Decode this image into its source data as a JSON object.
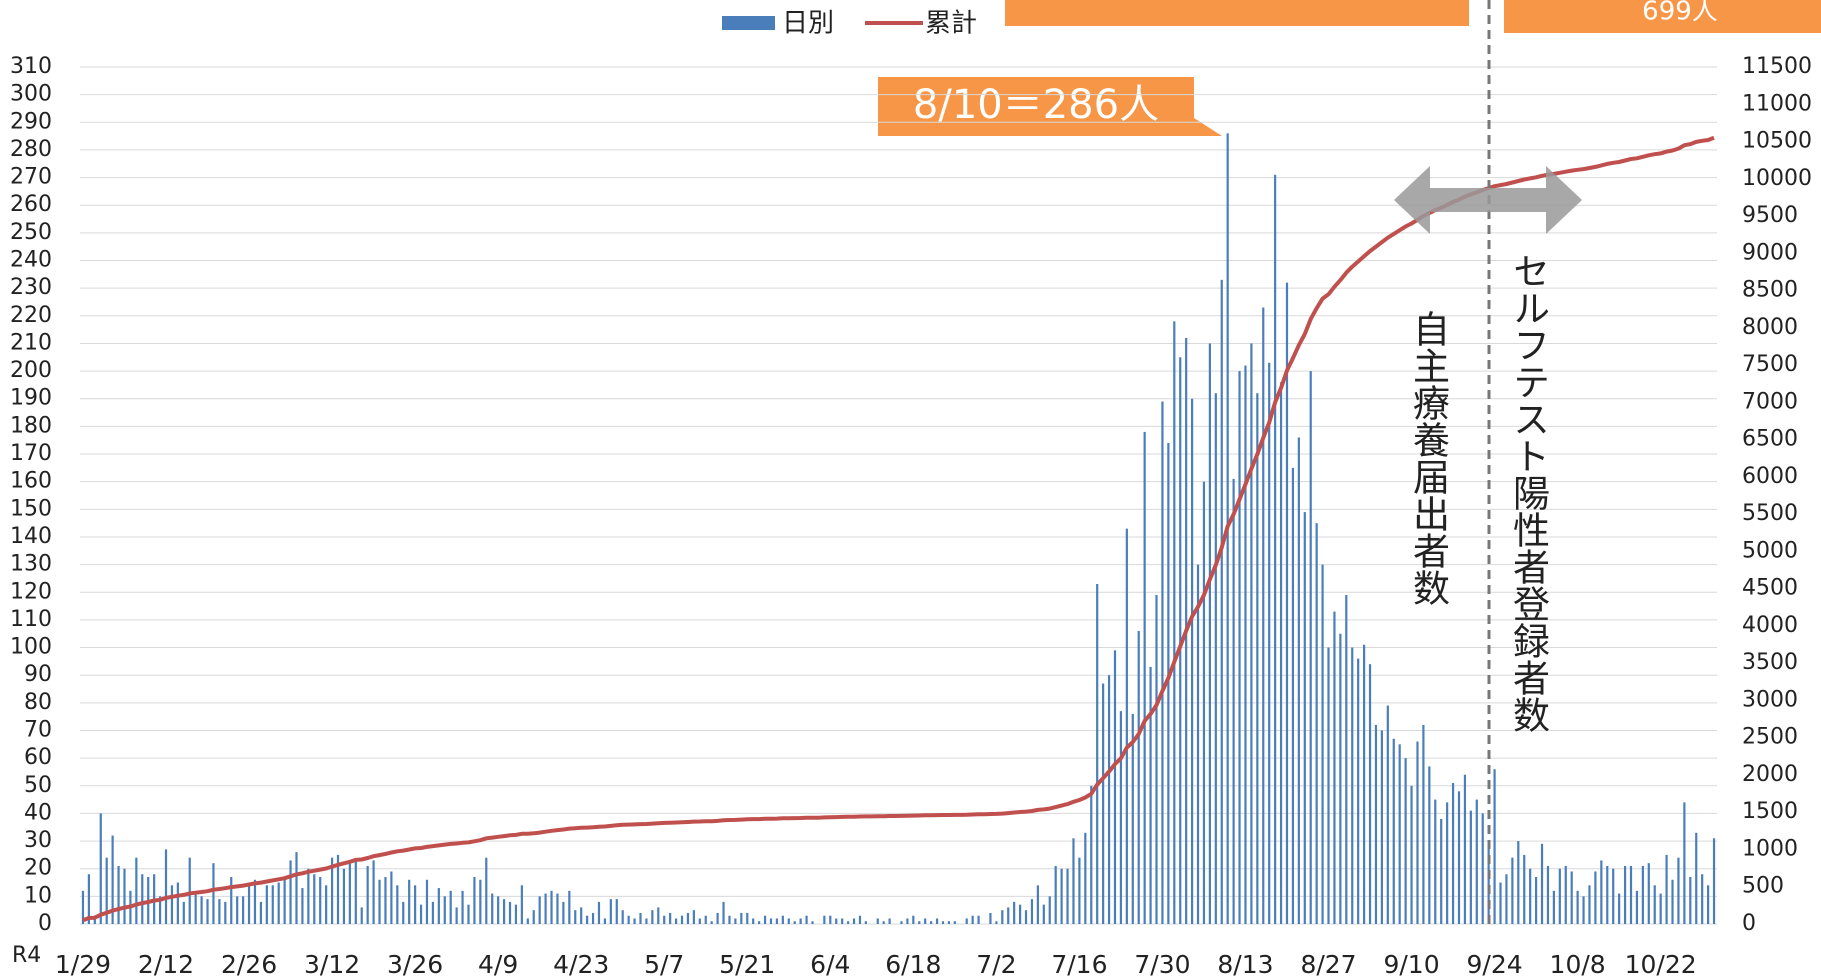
{
  "chart_data": {
    "type": "bar",
    "legend": "top",
    "grid": true,
    "ylim": [
      0,
      310
    ],
    "yticks": [
      0,
      10,
      20,
      30,
      40,
      50,
      60,
      70,
      80,
      90,
      100,
      110,
      120,
      130,
      140,
      150,
      160,
      170,
      180,
      190,
      200,
      210,
      220,
      230,
      240,
      250,
      260,
      270,
      280,
      290,
      300,
      310
    ],
    "y2lim": [
      0,
      11500
    ],
    "y2ticks": [
      0,
      500,
      1000,
      1500,
      2000,
      2500,
      3000,
      3500,
      4000,
      4500,
      5000,
      5500,
      6000,
      6500,
      7000,
      7500,
      8000,
      8500,
      9000,
      9500,
      10000,
      10500,
      11000,
      11500
    ],
    "annotations": [
      "8/10＝286人",
      "699人",
      "自主療養届出者数",
      "セルフテスト陽性者登録者数",
      "R4"
    ],
    "categories": [
      "1/29",
      null,
      null,
      null,
      null,
      null,
      null,
      null,
      null,
      null,
      null,
      null,
      null,
      null,
      "2/12",
      null,
      null,
      null,
      null,
      null,
      null,
      null,
      null,
      null,
      null,
      null,
      null,
      null,
      "2/26",
      null,
      null,
      null,
      null,
      null,
      null,
      null,
      null,
      null,
      null,
      null,
      null,
      null,
      "3/12",
      null,
      null,
      null,
      null,
      null,
      null,
      null,
      null,
      null,
      null,
      null,
      null,
      null,
      "3/26",
      null,
      null,
      null,
      null,
      null,
      null,
      null,
      null,
      null,
      null,
      null,
      null,
      null,
      "4/9",
      null,
      null,
      null,
      null,
      null,
      null,
      null,
      null,
      null,
      null,
      null,
      null,
      null,
      "4/23",
      null,
      null,
      null,
      null,
      null,
      null,
      null,
      null,
      null,
      null,
      null,
      null,
      null,
      "5/7",
      null,
      null,
      null,
      null,
      null,
      null,
      null,
      null,
      null,
      null,
      null,
      null,
      null,
      "5/21",
      null,
      null,
      null,
      null,
      null,
      null,
      null,
      null,
      null,
      null,
      null,
      null,
      null,
      "6/4",
      null,
      null,
      null,
      null,
      null,
      null,
      null,
      null,
      null,
      null,
      null,
      null,
      null,
      "6/18",
      null,
      null,
      null,
      null,
      null,
      null,
      null,
      null,
      null,
      null,
      null,
      null,
      null,
      "7/2",
      null,
      null,
      null,
      null,
      null,
      null,
      null,
      null,
      null,
      null,
      null,
      null,
      null,
      "7/16",
      null,
      null,
      null,
      null,
      null,
      null,
      null,
      null,
      null,
      null,
      null,
      null,
      null,
      "7/30",
      null,
      null,
      null,
      null,
      null,
      null,
      null,
      null,
      null,
      null,
      null,
      null,
      null,
      "8/13",
      null,
      null,
      null,
      null,
      null,
      null,
      null,
      null,
      null,
      null,
      null,
      null,
      null,
      "8/27",
      null,
      null,
      null,
      null,
      null,
      null,
      null,
      null,
      null,
      null,
      null,
      null,
      null,
      "9/10",
      null,
      null,
      null,
      null,
      null,
      null,
      null,
      null,
      null,
      null,
      null,
      null,
      null,
      "9/24",
      null,
      null,
      null,
      null,
      null,
      null,
      null,
      null,
      null,
      null,
      null,
      null,
      null,
      "10/8",
      null,
      null,
      null,
      null,
      null,
      null,
      null,
      null,
      null,
      null,
      null,
      null,
      null,
      "10/22",
      null,
      null,
      null,
      null,
      null,
      null,
      null,
      null,
      null
    ],
    "series": [
      {
        "name": "日別",
        "color": "#4a7ebb",
        "values": [
          12,
          18,
          3,
          40,
          24,
          32,
          21,
          20,
          12,
          24,
          18,
          17,
          18,
          10,
          27,
          14,
          15,
          8,
          24,
          11,
          10,
          9,
          22,
          9,
          8,
          17,
          10,
          10,
          15,
          16,
          8,
          14,
          14,
          15,
          17,
          23,
          26,
          13,
          20,
          18,
          17,
          14,
          24,
          25,
          20,
          22,
          23,
          6,
          21,
          23,
          16,
          17,
          19,
          14,
          8,
          16,
          14,
          7,
          16,
          8,
          13,
          10,
          12,
          6,
          12,
          7,
          17,
          16,
          24,
          11,
          10,
          9,
          8,
          7,
          14,
          2,
          5,
          10,
          11,
          12,
          11,
          8,
          12,
          5,
          6,
          3,
          4,
          8,
          2,
          9,
          9,
          5,
          3,
          2,
          4,
          2,
          5,
          6,
          3,
          4,
          2,
          3,
          4,
          5,
          2,
          3,
          1,
          4,
          8,
          3,
          2,
          4,
          4,
          2,
          1,
          3,
          2,
          2,
          3,
          2,
          1,
          2,
          3,
          1,
          0,
          3,
          3,
          2,
          2,
          1,
          2,
          3,
          1,
          0,
          2,
          1,
          2,
          0,
          1,
          2,
          3,
          1,
          2,
          1,
          2,
          1,
          1,
          1,
          0,
          2,
          3,
          3,
          0,
          4,
          1,
          5,
          6,
          8,
          7,
          5,
          9,
          14,
          7,
          10,
          21,
          20,
          20,
          31,
          24,
          33,
          50,
          123,
          87,
          90,
          99,
          77,
          143,
          76,
          106,
          178,
          93,
          119,
          189,
          174,
          218,
          205,
          212,
          190,
          130,
          160,
          210,
          192,
          233,
          286,
          161,
          200,
          202,
          210,
          192,
          223,
          203,
          271,
          196,
          232,
          165,
          176,
          149,
          200,
          145,
          130,
          100,
          113,
          105,
          119,
          100,
          96,
          101,
          94,
          72,
          70,
          79,
          67,
          65,
          60,
          50,
          66,
          72,
          57,
          45,
          38,
          44,
          51,
          48,
          54,
          41,
          45,
          40,
          30,
          56,
          15,
          18,
          24,
          30,
          25,
          20,
          17,
          29,
          21,
          12,
          20,
          21,
          19,
          12,
          10,
          14,
          19,
          23,
          21,
          20,
          11,
          21,
          21,
          12,
          21,
          22,
          14,
          11,
          25,
          16,
          24,
          44,
          17,
          33,
          18,
          14,
          31
        ]
      },
      {
        "name": "累計",
        "color": "#c0504d",
        "axis": "y2",
        "type": "line",
        "values": [
          50,
          80,
          85,
          125,
          150,
          180,
          200,
          220,
          235,
          260,
          280,
          295,
          315,
          325,
          350,
          365,
          380,
          390,
          410,
          420,
          430,
          440,
          460,
          470,
          480,
          495,
          505,
          515,
          530,
          545,
          555,
          570,
          585,
          600,
          615,
          640,
          665,
          680,
          700,
          715,
          730,
          745,
          770,
          795,
          815,
          835,
          860,
          865,
          885,
          910,
          925,
          940,
          960,
          975,
          985,
          1000,
          1015,
          1020,
          1035,
          1045,
          1055,
          1065,
          1075,
          1080,
          1090,
          1095,
          1110,
          1125,
          1150,
          1160,
          1170,
          1180,
          1190,
          1195,
          1210,
          1212,
          1217,
          1227,
          1238,
          1250,
          1260,
          1268,
          1280,
          1285,
          1291,
          1294,
          1298,
          1306,
          1308,
          1317,
          1326,
          1331,
          1334,
          1336,
          1340,
          1342,
          1347,
          1353,
          1356,
          1360,
          1362,
          1365,
          1369,
          1374,
          1376,
          1379,
          1380,
          1384,
          1392,
          1395,
          1397,
          1401,
          1405,
          1407,
          1408,
          1411,
          1413,
          1415,
          1418,
          1420,
          1421,
          1423,
          1426,
          1427,
          1427,
          1430,
          1433,
          1435,
          1437,
          1438,
          1440,
          1443,
          1444,
          1444,
          1446,
          1447,
          1449,
          1449,
          1450,
          1452,
          1455,
          1456,
          1458,
          1459,
          1461,
          1462,
          1463,
          1464,
          1464,
          1466,
          1469,
          1472,
          1472,
          1476,
          1477,
          1482,
          1488,
          1496,
          1503,
          1508,
          1517,
          1531,
          1538,
          1548,
          1569,
          1589,
          1609,
          1640,
          1664,
          1697,
          1747,
          1870,
          1957,
          2047,
          2146,
          2223,
          2366,
          2442,
          2548,
          2726,
          2819,
          2938,
          3127,
          3301,
          3519,
          3724,
          3936,
          4126,
          4256,
          4416,
          4626,
          4818,
          5051,
          5337,
          5498,
          5698,
          5900,
          6110,
          6302,
          6525,
          6728,
          6999,
          7195,
          7427,
          7592,
          7768,
          7917,
          8117,
          8262,
          8392,
          8450,
          8550,
          8640,
          8740,
          8820,
          8890,
          8960,
          9030,
          9090,
          9150,
          9210,
          9260,
          9310,
          9360,
          9400,
          9450,
          9500,
          9540,
          9580,
          9610,
          9650,
          9690,
          9720,
          9760,
          9790,
          9820,
          9850,
          9875,
          9900,
          9915,
          9930,
          9950,
          9970,
          9990,
          10005,
          10020,
          10040,
          10055,
          10065,
          10080,
          10095,
          10110,
          10120,
          10130,
          10145,
          10160,
          10180,
          10200,
          10215,
          10225,
          10245,
          10265,
          10275,
          10295,
          10315,
          10330,
          10340,
          10365,
          10380,
          10405,
          10450,
          10465,
          10495,
          10510,
          10520,
          10550
        ]
      }
    ]
  }
}
